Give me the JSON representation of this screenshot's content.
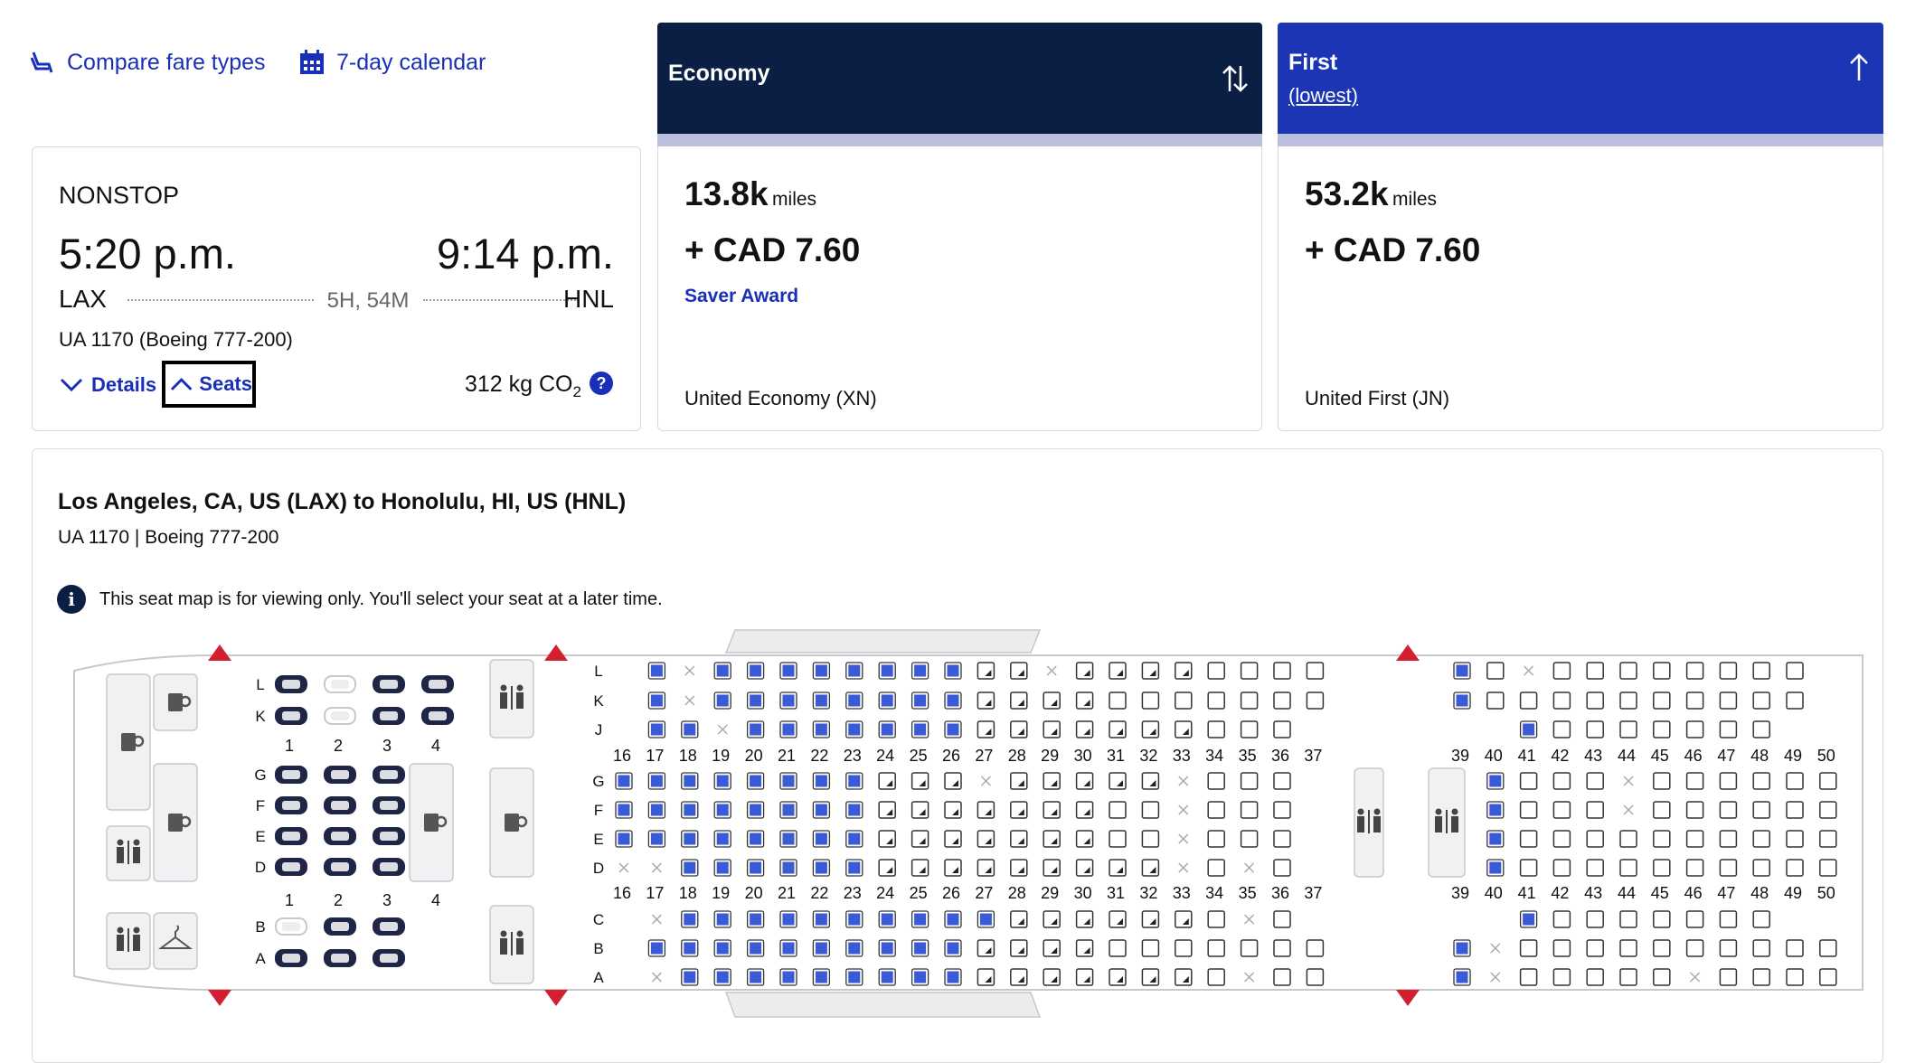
{
  "top_links": {
    "compare_fare_types": "Compare fare types",
    "calendar": "7-day calendar"
  },
  "fare_columns": [
    {
      "title": "Economy",
      "subtitle": "",
      "miles": "13.8k",
      "miles_unit": "miles",
      "cash": "+ CAD 7.60",
      "award": "Saver Award",
      "fare_class": "United Economy (XN)",
      "header_color": "#0b1f45",
      "stripe_color": "#b9bfdc"
    },
    {
      "title": "First",
      "subtitle": "(lowest)",
      "miles": "53.2k",
      "miles_unit": "miles",
      "cash": "+ CAD 7.60",
      "award": "",
      "fare_class": "United First (JN)",
      "header_color": "#1b35b5",
      "stripe_color": "#b9bfdc"
    }
  ],
  "flight": {
    "stops": "NONSTOP",
    "depart_time": "5:20 p.m.",
    "arrive_time": "9:14 p.m.",
    "origin": "LAX",
    "destination": "HNL",
    "duration": "5H, 54M",
    "flight_number": "UA 1170 (Boeing 777-200)",
    "details_label": "Details",
    "seats_label": "Seats",
    "co2": "312 kg CO",
    "co2_sub": "2",
    "help": "?"
  },
  "seatmap_panel": {
    "route": "Los Angeles, CA, US (LAX) to Honolulu, HI, US (HNL)",
    "aircraft": "UA 1170 | Boeing 777-200",
    "info_icon": "i",
    "notice": "This seat map is for viewing only. You'll select your seat at a later time."
  },
  "seat_legend_colors": {
    "available": "#3b5bd6",
    "open": "#ffffff",
    "exit": "#d22030"
  },
  "seatmap": {
    "first_cols": [
      "1",
      "2",
      "3",
      "4"
    ],
    "first_rows_top": [
      "L",
      "K"
    ],
    "first_rows_mid": [
      "G",
      "F",
      "E",
      "D"
    ],
    "first_rows_bot": [
      "B",
      "A"
    ],
    "first_states": {
      "L": [
        "d",
        "o",
        "d",
        "d"
      ],
      "K": [
        "d",
        "o",
        "d",
        "d"
      ],
      "G": [
        "d",
        "d",
        "d",
        ""
      ],
      "F": [
        "d",
        "d",
        "d",
        ""
      ],
      "E": [
        "d",
        "d",
        "d",
        ""
      ],
      "D": [
        "d",
        "d",
        "d",
        ""
      ],
      "B": [
        "o",
        "d",
        "d",
        ""
      ],
      "A": [
        "d",
        "d",
        "d",
        ""
      ]
    },
    "econ1_cols": [
      "16",
      "17",
      "18",
      "19",
      "20",
      "21",
      "22",
      "23",
      "24",
      "25",
      "26",
      "27",
      "28",
      "29",
      "30",
      "31",
      "32",
      "33",
      "34",
      "35",
      "36",
      "37"
    ],
    "econ2_cols": [
      "39",
      "40",
      "41",
      "42",
      "43",
      "44",
      "45",
      "46",
      "47",
      "48",
      "49",
      "50"
    ],
    "row_labels": [
      "L",
      "K",
      "J",
      "G",
      "F",
      "E",
      "D",
      "C",
      "B",
      "A"
    ],
    "econ1_states": {
      "L": [
        "",
        "b",
        "x",
        "b",
        "b",
        "b",
        "b",
        "b",
        "b",
        "b",
        "b",
        "h",
        "h",
        "x",
        "h",
        "h",
        "h",
        "h",
        "o",
        "o",
        "o",
        "o"
      ],
      "K": [
        "",
        "b",
        "x",
        "b",
        "b",
        "b",
        "b",
        "b",
        "b",
        "b",
        "b",
        "h",
        "h",
        "h",
        "h",
        "o",
        "o",
        "o",
        "o",
        "o",
        "o",
        "o"
      ],
      "J": [
        "",
        "b",
        "b",
        "x",
        "b",
        "b",
        "b",
        "b",
        "b",
        "b",
        "b",
        "h",
        "h",
        "h",
        "h",
        "h",
        "h",
        "h",
        "o",
        "o",
        "o",
        ""
      ],
      "G": [
        "b",
        "b",
        "b",
        "b",
        "b",
        "b",
        "b",
        "b",
        "h",
        "h",
        "h",
        "x",
        "h",
        "h",
        "h",
        "h",
        "h",
        "x",
        "o",
        "o",
        "o",
        ""
      ],
      "F": [
        "b",
        "b",
        "b",
        "b",
        "b",
        "b",
        "b",
        "b",
        "h",
        "h",
        "h",
        "h",
        "h",
        "h",
        "h",
        "o",
        "o",
        "x",
        "o",
        "o",
        "o",
        ""
      ],
      "E": [
        "b",
        "b",
        "b",
        "b",
        "b",
        "b",
        "b",
        "b",
        "h",
        "h",
        "h",
        "h",
        "h",
        "h",
        "h",
        "o",
        "o",
        "x",
        "o",
        "o",
        "o",
        ""
      ],
      "D": [
        "x",
        "x",
        "b",
        "b",
        "b",
        "b",
        "b",
        "b",
        "h",
        "h",
        "h",
        "h",
        "h",
        "h",
        "h",
        "h",
        "h",
        "x",
        "o",
        "x",
        "o",
        ""
      ],
      "C": [
        "",
        "x",
        "b",
        "b",
        "b",
        "b",
        "b",
        "b",
        "b",
        "b",
        "b",
        "b",
        "h",
        "h",
        "h",
        "h",
        "h",
        "h",
        "o",
        "x",
        "o",
        ""
      ],
      "B": [
        "",
        "b",
        "b",
        "b",
        "b",
        "b",
        "b",
        "b",
        "b",
        "b",
        "b",
        "h",
        "h",
        "h",
        "h",
        "o",
        "o",
        "o",
        "o",
        "o",
        "o",
        "o"
      ],
      "A": [
        "",
        "x",
        "b",
        "b",
        "b",
        "b",
        "b",
        "b",
        "b",
        "b",
        "b",
        "h",
        "h",
        "h",
        "h",
        "h",
        "h",
        "h",
        "o",
        "x",
        "o",
        "o"
      ]
    },
    "econ2_states": {
      "L": [
        "b",
        "o",
        "x",
        "o",
        "o",
        "o",
        "o",
        "o",
        "o",
        "o",
        "o",
        ""
      ],
      "K": [
        "b",
        "o",
        "o",
        "o",
        "o",
        "o",
        "o",
        "o",
        "o",
        "o",
        "o",
        ""
      ],
      "J": [
        "",
        "",
        "b",
        "o",
        "o",
        "o",
        "o",
        "o",
        "o",
        "o",
        "",
        ""
      ],
      "G": [
        "",
        "b",
        "o",
        "o",
        "o",
        "x",
        "o",
        "o",
        "o",
        "o",
        "o",
        "o"
      ],
      "F": [
        "",
        "b",
        "o",
        "o",
        "o",
        "x",
        "o",
        "o",
        "o",
        "o",
        "o",
        "o"
      ],
      "E": [
        "",
        "b",
        "o",
        "o",
        "o",
        "o",
        "o",
        "o",
        "o",
        "o",
        "o",
        "o"
      ],
      "D": [
        "",
        "b",
        "o",
        "o",
        "o",
        "o",
        "o",
        "o",
        "o",
        "o",
        "o",
        "o"
      ],
      "C": [
        "",
        "",
        "b",
        "o",
        "o",
        "o",
        "o",
        "o",
        "o",
        "o",
        "",
        ""
      ],
      "B": [
        "b",
        "x",
        "o",
        "o",
        "o",
        "o",
        "o",
        "o",
        "o",
        "o",
        "o",
        "o"
      ],
      "A": [
        "b",
        "x",
        "o",
        "o",
        "o",
        "o",
        "o",
        "x",
        "o",
        "o",
        "o",
        "o"
      ]
    }
  }
}
